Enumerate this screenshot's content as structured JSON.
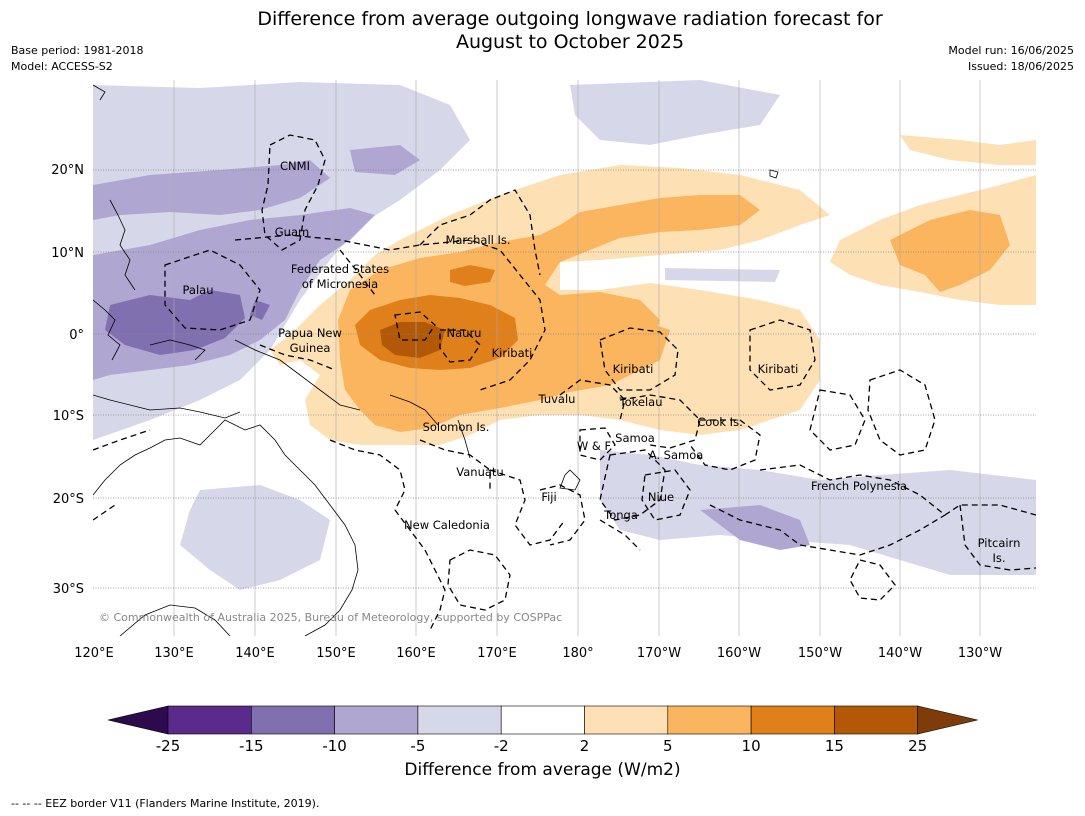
{
  "title_line1": "Difference from average outgoing longwave radiation forecast for",
  "title_line2": "August to October 2025",
  "meta_left": [
    "Base period: 1981-2018",
    "Model: ACCESS-S2"
  ],
  "meta_right": [
    "Model run: 16/06/2025",
    "Issued: 18/06/2025"
  ],
  "copyright": "© Commonwealth of Australia 2025, Bureau of Meteorology, supported by COSPPac",
  "lon_ticks": [
    "120°E",
    "130°E",
    "140°E",
    "150°E",
    "160°E",
    "170°E",
    "180°",
    "170°W",
    "160°W",
    "150°W",
    "140°W",
    "130°W"
  ],
  "lat_ticks": [
    "20°N",
    "10°N",
    "0°",
    "10°S",
    "20°S",
    "30°S"
  ],
  "region_labels": {
    "cnmi": "CNMI",
    "guam": "Guam",
    "marshall": "Marshall Is.",
    "fsm1": "Federated States",
    "fsm2": "of Micronesia",
    "palau": "Palau",
    "png1": "Papua New",
    "png2": "Guinea",
    "nauru": "Nauru",
    "kiribati_w": "Kiribati",
    "kiribati_c": "Kiribati",
    "kiribati_e": "Kiribati",
    "tuvalu": "Tuvalu",
    "tokelau": "Tokelau",
    "solomon": "Solomon Is.",
    "cook": "Cook Is.",
    "samoa": "Samoa",
    "wf": "W & F",
    "asamoa": "A. Samoa",
    "vanuatu": "Vanuatu",
    "fiji": "Fiji",
    "niue": "Niue",
    "tonga": "Tonga",
    "frenchpoly": "French Polynesia",
    "newcal": "New Caledonia",
    "pitcairn1": "Pitcairn",
    "pitcairn2": "Is."
  },
  "colorbar": {
    "ticks": [
      "-25",
      "-15",
      "-10",
      "-5",
      "-2",
      "2",
      "5",
      "10",
      "15",
      "25"
    ],
    "colors": [
      "#2d0a4e",
      "#5a2a8c",
      "#8170b0",
      "#afa6d2",
      "#d7d7ea",
      "#ffffff",
      "#fde0b3",
      "#fbb55e",
      "#e0801b",
      "#b35806",
      "#7f3b08"
    ],
    "label": "Difference from average (W/m2)"
  },
  "footnote": "--  --  -- EEZ border V11 (Flanders Marine Institute, 2019)."
}
